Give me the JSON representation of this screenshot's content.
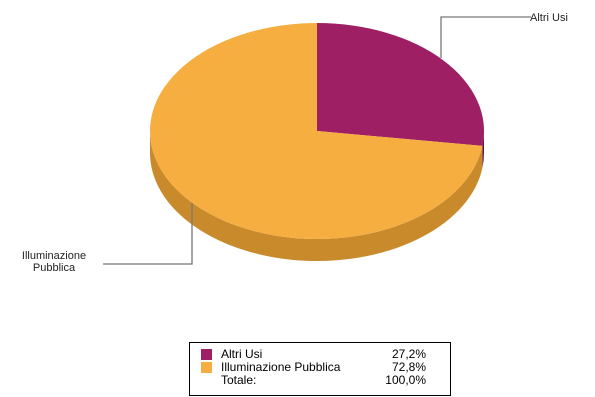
{
  "chart_data": {
    "type": "pie",
    "title": "",
    "slices": [
      {
        "label": "Altri Usi",
        "value": 27.2,
        "display": "27,2%",
        "color": "#9e1f63",
        "side_color": "#6b1445",
        "callout": [
          "Altri Usi"
        ]
      },
      {
        "label": "Illuminazione Pubblica",
        "value": 72.8,
        "display": "72,8%",
        "color": "#f7ae40",
        "side_color": "#c98a2c",
        "callout": [
          "Illuminazione",
          "Pubblica"
        ]
      }
    ],
    "total": {
      "label": "Totale:",
      "display": "100,0%"
    },
    "legend_position": "bottom"
  }
}
